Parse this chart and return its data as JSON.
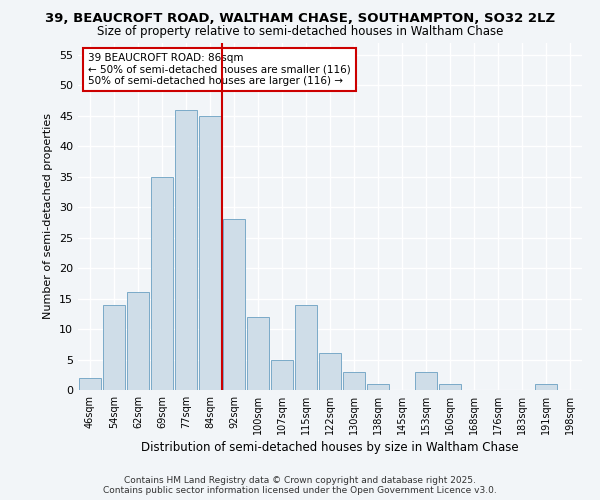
{
  "title": "39, BEAUCROFT ROAD, WALTHAM CHASE, SOUTHAMPTON, SO32 2LZ",
  "subtitle": "Size of property relative to semi-detached houses in Waltham Chase",
  "xlabel": "Distribution of semi-detached houses by size in Waltham Chase",
  "ylabel": "Number of semi-detached properties",
  "bar_labels": [
    "46sqm",
    "54sqm",
    "62sqm",
    "69sqm",
    "77sqm",
    "84sqm",
    "92sqm",
    "100sqm",
    "107sqm",
    "115sqm",
    "122sqm",
    "130sqm",
    "138sqm",
    "145sqm",
    "153sqm",
    "160sqm",
    "168sqm",
    "176sqm",
    "183sqm",
    "191sqm",
    "198sqm"
  ],
  "bar_values": [
    2,
    14,
    16,
    35,
    46,
    45,
    28,
    12,
    5,
    14,
    6,
    3,
    1,
    0,
    3,
    1,
    0,
    0,
    0,
    1,
    0
  ],
  "bar_color": "#cfdde8",
  "bar_edge_color": "#7aaac8",
  "vline_x": 5.5,
  "annotation_line1": "39 BEAUCROFT ROAD: 86sqm",
  "annotation_line2": "← 50% of semi-detached houses are smaller (116)",
  "annotation_line3": "50% of semi-detached houses are larger (116) →",
  "ylim": [
    0,
    57
  ],
  "yticks": [
    0,
    5,
    10,
    15,
    20,
    25,
    30,
    35,
    40,
    45,
    50,
    55
  ],
  "footer_line1": "Contains HM Land Registry data © Crown copyright and database right 2025.",
  "footer_line2": "Contains public sector information licensed under the Open Government Licence v3.0.",
  "bg_color": "#f2f5f8",
  "plot_bg_color": "#f2f5f8",
  "grid_color": "#ffffff",
  "vline_color": "#cc0000",
  "annotation_box_edge": "#cc0000",
  "title_fontsize": 9.5,
  "subtitle_fontsize": 8.5
}
